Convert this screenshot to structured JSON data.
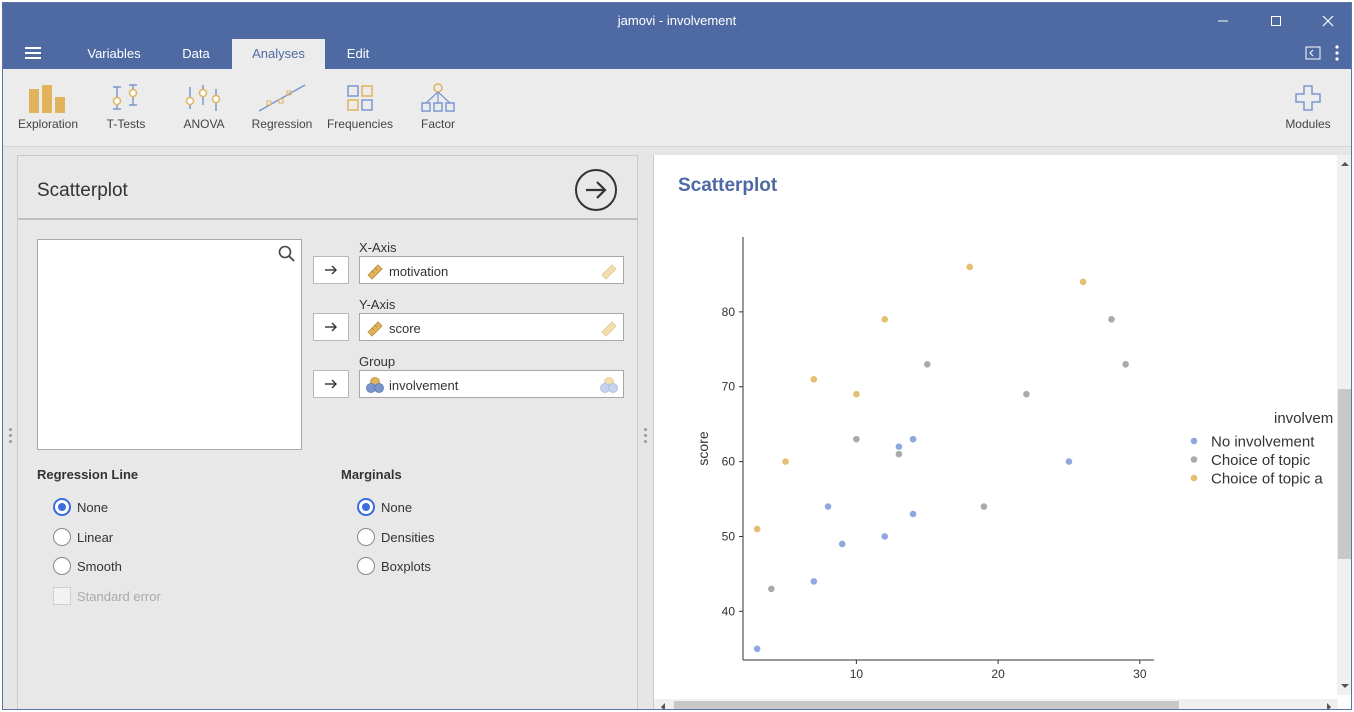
{
  "window": {
    "title": "jamovi - involvement"
  },
  "menubar": {
    "tabs": [
      {
        "label": "Variables"
      },
      {
        "label": "Data"
      },
      {
        "label": "Analyses"
      },
      {
        "label": "Edit"
      }
    ],
    "active_tab": "Analyses"
  },
  "ribbon": {
    "items": [
      {
        "label": "Exploration",
        "icon": "exploration-icon"
      },
      {
        "label": "T-Tests",
        "icon": "t-tests-icon"
      },
      {
        "label": "ANOVA",
        "icon": "anova-icon"
      },
      {
        "label": "Regression",
        "icon": "regression-icon"
      },
      {
        "label": "Frequencies",
        "icon": "frequencies-icon"
      },
      {
        "label": "Factor",
        "icon": "factor-icon"
      }
    ],
    "modules_label": "Modules"
  },
  "options": {
    "title": "Scatterplot",
    "x_axis": {
      "label": "X-Axis",
      "value": "motivation"
    },
    "y_axis": {
      "label": "Y-Axis",
      "value": "score"
    },
    "group": {
      "label": "Group",
      "value": "involvement"
    },
    "regression_line": {
      "heading": "Regression Line",
      "options": [
        "None",
        "Linear",
        "Smooth"
      ],
      "selected": "None",
      "standard_error_label": "Standard error"
    },
    "marginals": {
      "heading": "Marginals",
      "options": [
        "None",
        "Densities",
        "Boxplots"
      ],
      "selected": "None"
    }
  },
  "results": {
    "title": "Scatterplot",
    "chart_data": {
      "type": "scatter",
      "xlabel": "",
      "ylabel": "score",
      "xlim": [
        2,
        31
      ],
      "ylim": [
        33.5,
        90
      ],
      "x_ticks": [
        10,
        20,
        30
      ],
      "y_ticks": [
        40,
        50,
        60,
        70,
        80
      ],
      "legend_title": "involvem",
      "legend_position": "right",
      "series": [
        {
          "name": "No involvement",
          "color": "#8fa9e0",
          "points": [
            [
              3,
              35
            ],
            [
              7,
              44
            ],
            [
              8,
              54
            ],
            [
              9,
              49
            ],
            [
              12,
              50
            ],
            [
              13,
              62
            ],
            [
              14,
              63
            ],
            [
              14,
              53
            ],
            [
              25,
              60
            ]
          ]
        },
        {
          "name": "Choice of topic",
          "color": "#aaaaaa",
          "points": [
            [
              4,
              43
            ],
            [
              10,
              63
            ],
            [
              13,
              61
            ],
            [
              15,
              73
            ],
            [
              19,
              54
            ],
            [
              22,
              69
            ],
            [
              28,
              79
            ],
            [
              29,
              73
            ]
          ]
        },
        {
          "name": "Choice of topic a",
          "color": "#e6bf73",
          "points": [
            [
              3,
              51
            ],
            [
              5,
              60
            ],
            [
              7,
              71
            ],
            [
              10,
              69
            ],
            [
              12,
              79
            ],
            [
              18,
              86
            ],
            [
              26,
              84
            ]
          ]
        }
      ]
    }
  }
}
